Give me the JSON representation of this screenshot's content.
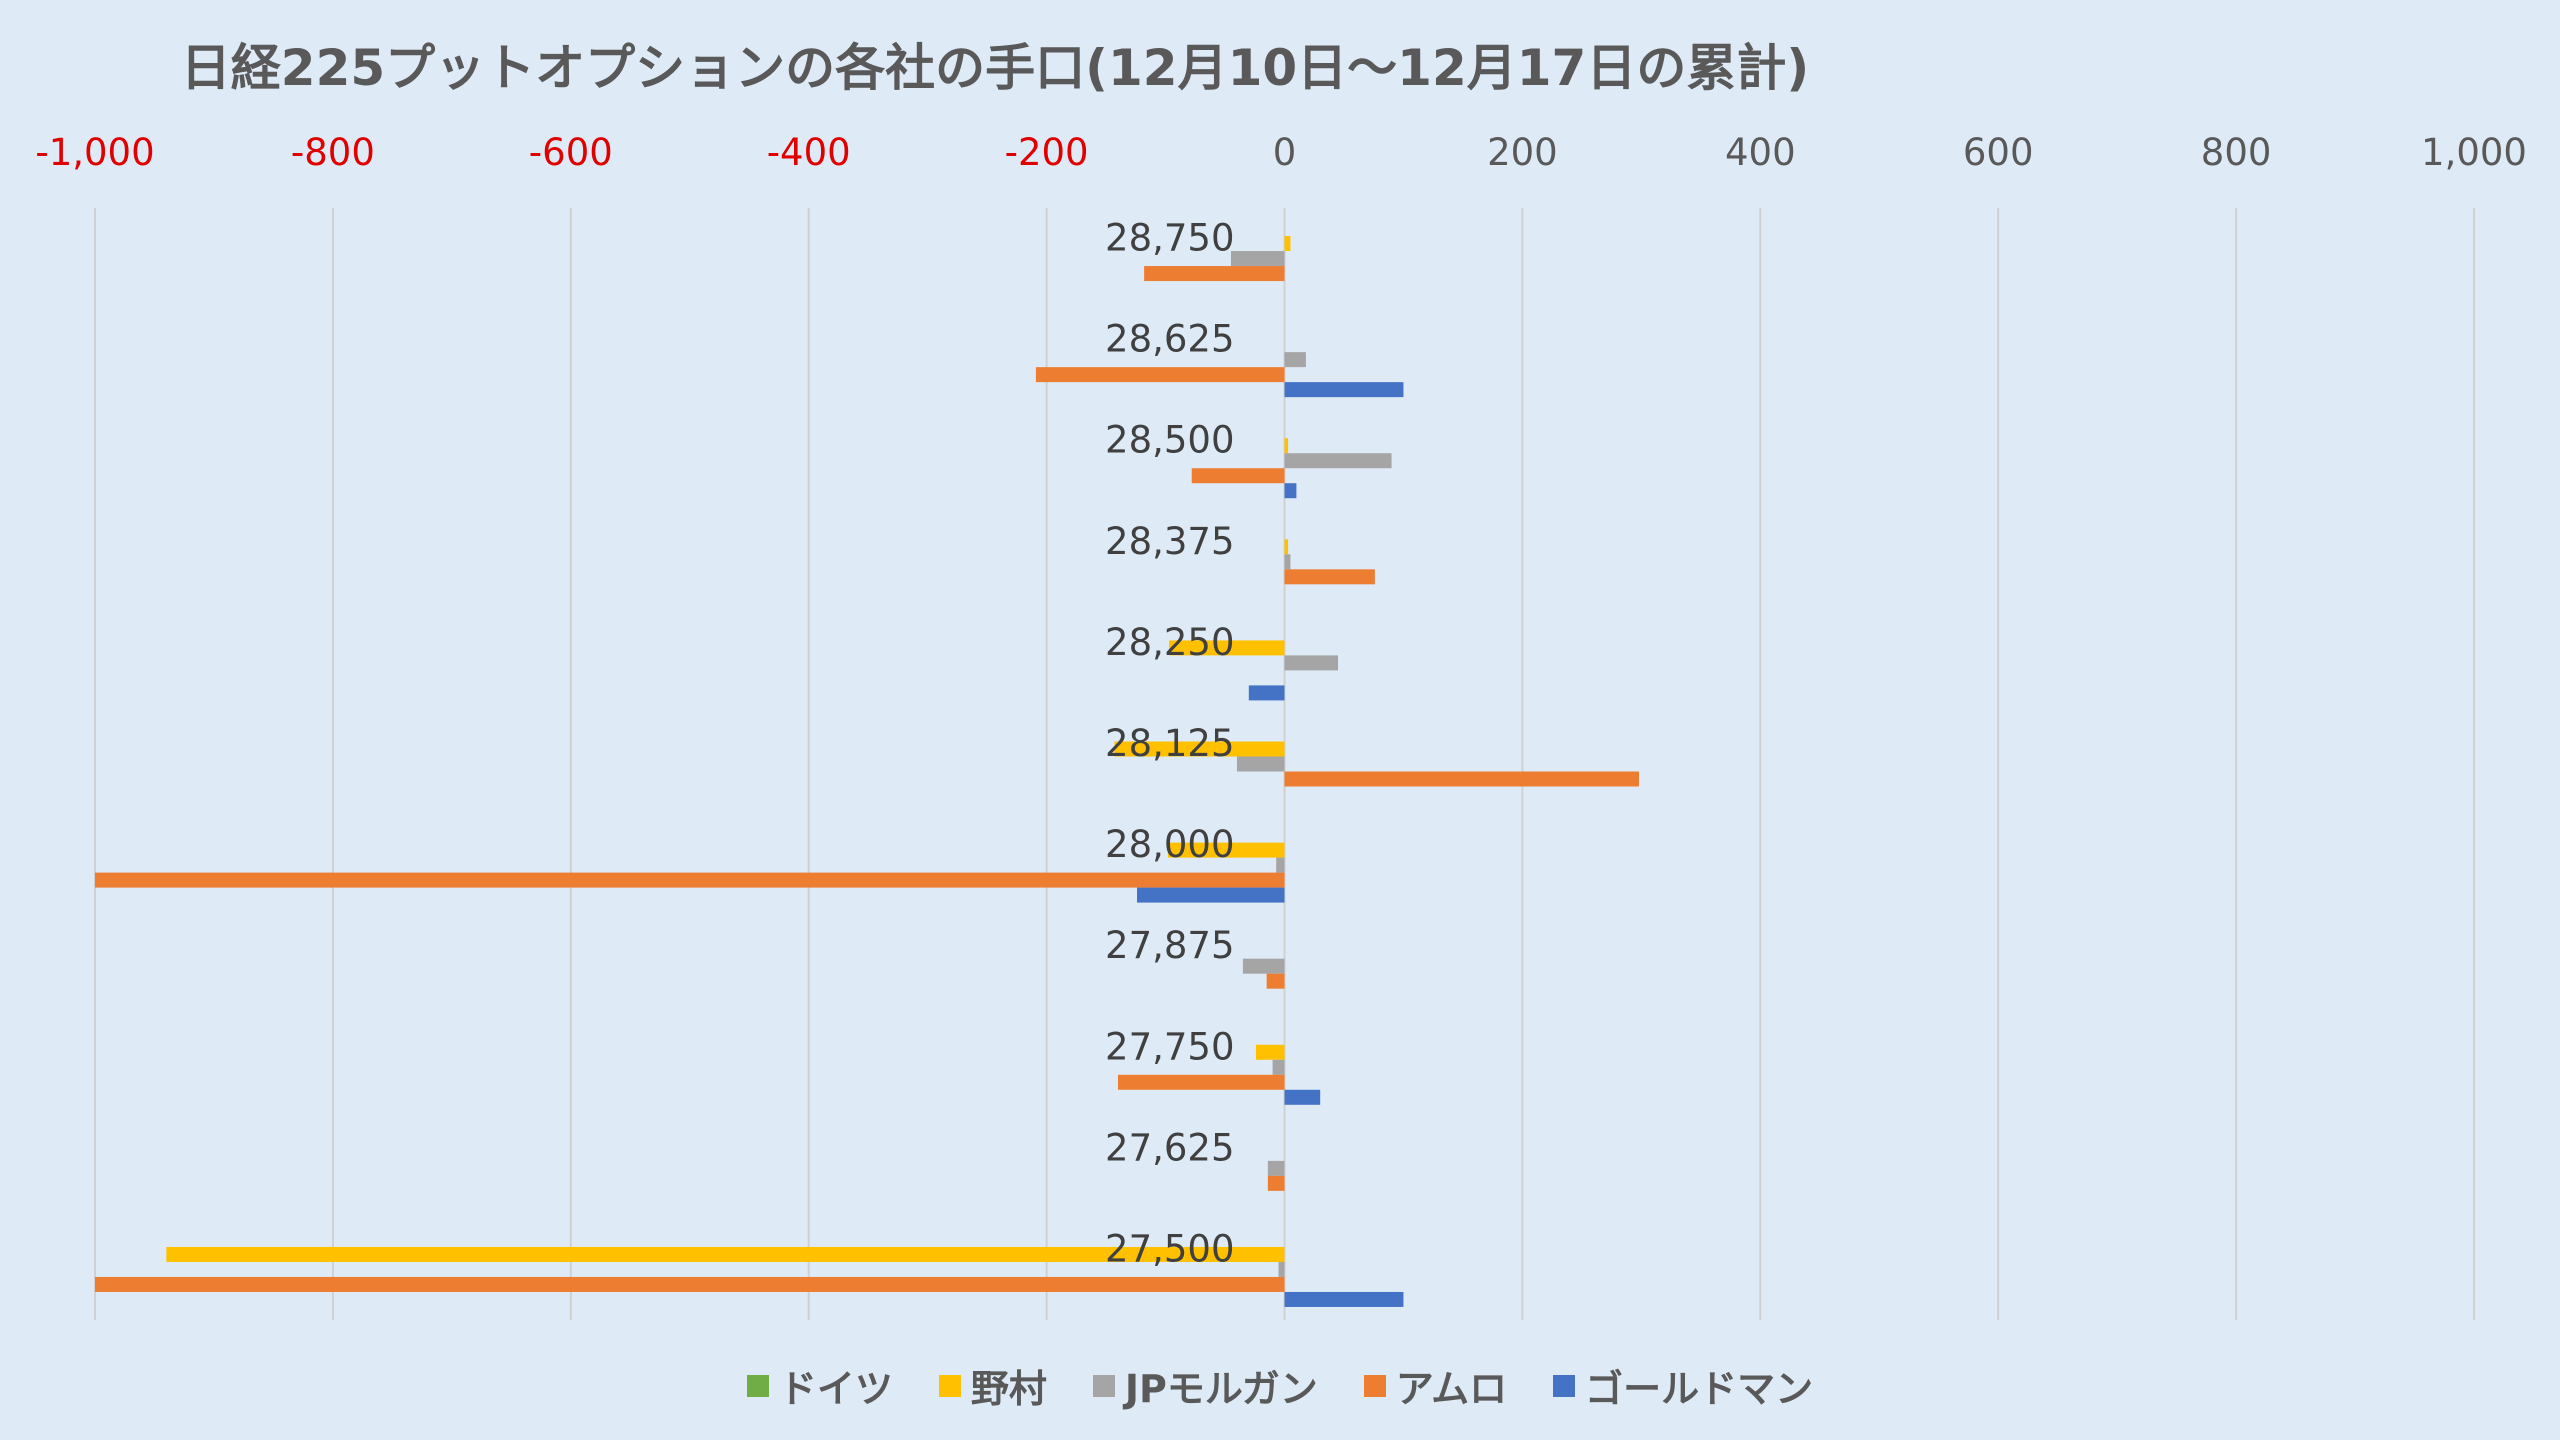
{
  "chart_data": {
    "type": "bar",
    "orientation": "horizontal",
    "title": "日経225プットオプションの各社の手口(12月10日～12月17日の累計)",
    "xlim": [
      -1000,
      1000
    ],
    "x_ticks": [
      {
        "value": -1000,
        "label": "-1,000"
      },
      {
        "value": -800,
        "label": "-800"
      },
      {
        "value": -600,
        "label": "-600"
      },
      {
        "value": -400,
        "label": "-400"
      },
      {
        "value": -200,
        "label": "-200"
      },
      {
        "value": 0,
        "label": "0"
      },
      {
        "value": 200,
        "label": "200"
      },
      {
        "value": 400,
        "label": "400"
      },
      {
        "value": 600,
        "label": "600"
      },
      {
        "value": 800,
        "label": "800"
      },
      {
        "value": 1000,
        "label": "1,000"
      }
    ],
    "x_axis_position": "top",
    "negative_tick_color": "#e00000",
    "positive_tick_color": "#595959",
    "grid": true,
    "legend_position": "bottom",
    "categories": [
      "28,750",
      "28,625",
      "28,500",
      "28,375",
      "28,250",
      "28,125",
      "28,000",
      "27,875",
      "27,750",
      "27,625",
      "27,500"
    ],
    "series": [
      {
        "name": "ドイツ",
        "color": "#70ad47",
        "values": [
          0,
          0,
          0,
          0,
          0,
          0,
          0,
          0,
          0,
          0,
          0
        ]
      },
      {
        "name": "野村",
        "color": "#ffc000",
        "values": [
          5,
          0,
          3,
          3,
          -97,
          -143,
          -98,
          0,
          -24,
          0,
          -940
        ]
      },
      {
        "name": "JPモルガン",
        "color": "#a5a5a5",
        "values": [
          -45,
          18,
          90,
          5,
          45,
          -40,
          -7,
          -35,
          -10,
          -14,
          -5
        ]
      },
      {
        "name": "アムロ",
        "color": "#ed7d31",
        "values": [
          -118,
          -209,
          -78,
          76,
          0,
          298,
          -1000,
          -15,
          -140,
          -14,
          -1000
        ]
      },
      {
        "name": "ゴールドマン",
        "color": "#4472c4",
        "values": [
          0,
          100,
          10,
          0,
          -30,
          0,
          -124,
          0,
          30,
          0,
          100
        ]
      }
    ]
  }
}
